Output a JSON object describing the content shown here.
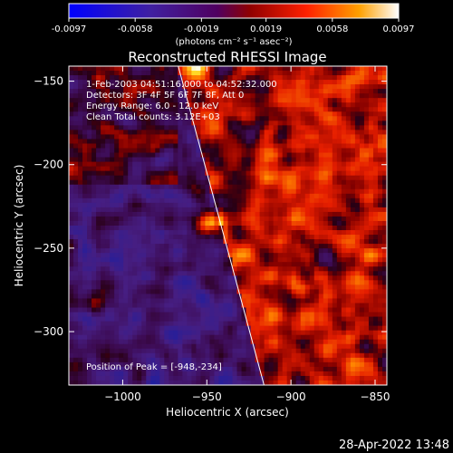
{
  "colorbar": {
    "ticks": [
      "-0.0097",
      "-0.0058",
      "-0.0019",
      "0.0019",
      "0.0058",
      "0.0097"
    ],
    "unit_label": "(photons cm⁻² s⁻¹ asec⁻²)",
    "range": [
      -0.0097,
      0.0097
    ]
  },
  "chart_data": {
    "type": "heatmap",
    "title": "Reconstructed RHESSI Image",
    "xlabel": "Heliocentric X (arcsec)",
    "ylabel": "Heliocentric Y (arcsec)",
    "xlim": [
      -1032,
      -843
    ],
    "ylim": [
      -332,
      -141
    ],
    "x_ticks": [
      -1000,
      -950,
      -900,
      -850
    ],
    "y_ticks": [
      -150,
      -200,
      -250,
      -300
    ],
    "x_tick_labels": [
      "−1000",
      "−950",
      "−900",
      "−850"
    ],
    "y_tick_labels": [
      "−150",
      "−200",
      "−250",
      "−300"
    ],
    "annotations": [
      "1-Feb-2003 04:51:16.000 to 04:52:32.000",
      "Detectors: 3F 4F 5F 6F 7F 8F, Att 0",
      "Energy Range: 6.0 - 12.0 keV",
      "Clean    Total counts: 3.12E+03"
    ],
    "peak_label": "Position of Peak = [-948,-234]",
    "peak": {
      "x": -948,
      "y": -234
    },
    "limb_line": [
      [
        -967,
        -141
      ],
      [
        -916,
        -332
      ]
    ]
  },
  "footer": {
    "timestamp": "28-Apr-2022 13:48"
  }
}
